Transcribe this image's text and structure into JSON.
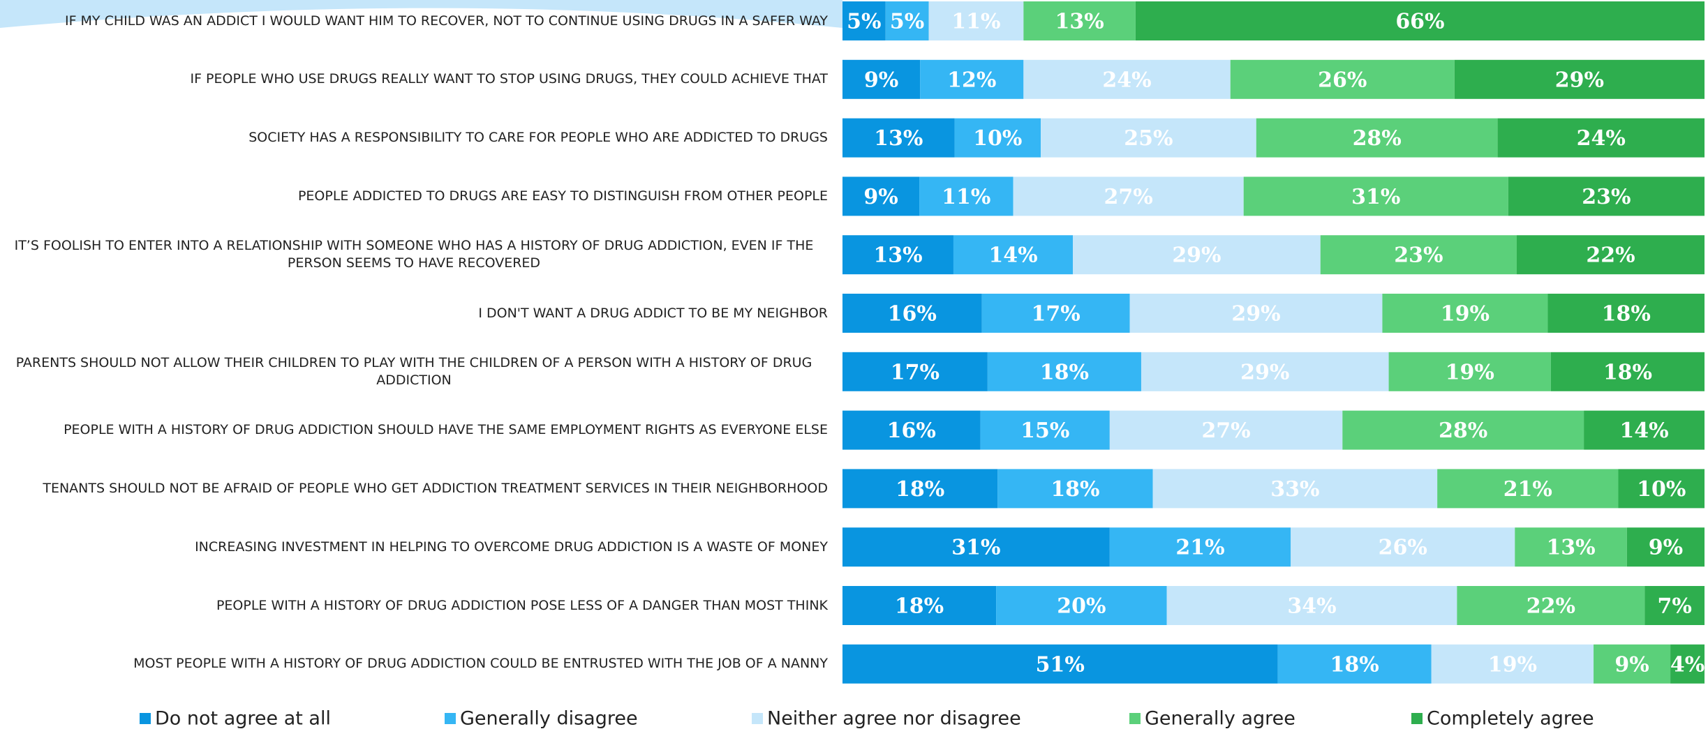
{
  "chart_data": {
    "type": "stacked-bar-horizontal",
    "categories": [
      "IF MY CHILD WAS AN ADDICT I WOULD WANT HIM TO RECOVER, NOT TO CONTINUE USING DRUGS IN A SAFER WAY",
      "IF PEOPLE WHO USE DRUGS REALLY WANT TO STOP USING DRUGS, THEY COULD ACHIEVE THAT",
      "SOCIETY HAS A RESPONSIBILITY TO CARE FOR PEOPLE WHO ARE ADDICTED TO DRUGS",
      "PEOPLE ADDICTED TO DRUGS ARE EASY TO DISTINGUISH FROM OTHER PEOPLE",
      "IT’S FOOLISH TO ENTER INTO A RELATIONSHIP WITH SOMEONE WHO HAS A HISTORY OF DRUG ADDICTION, EVEN IF THE PERSON SEEMS TO HAVE RECOVERED",
      "I DON'T WANT A DRUG ADDICT TO BE MY NEIGHBOR",
      "PARENTS SHOULD NOT ALLOW THEIR CHILDREN TO PLAY WITH THE CHILDREN OF A PERSON WITH A HISTORY OF DRUG ADDICTION",
      "PEOPLE WITH A HISTORY OF DRUG ADDICTION SHOULD HAVE THE SAME EMPLOYMENT RIGHTS AS EVERYONE ELSE",
      "TENANTS SHOULD NOT BE AFRAID OF PEOPLE WHO GET ADDICTION TREATMENT SERVICES IN THEIR NEIGHBORHOOD",
      "INCREASING INVESTMENT IN HELPING TO OVERCOME DRUG ADDICTION IS A WASTE OF MONEY",
      "PEOPLE WITH A HISTORY OF DRUG ADDICTION POSE LESS OF A DANGER THAN MOST THINK",
      "MOST PEOPLE WITH A HISTORY OF DRUG ADDICTION COULD BE ENTRUSTED WITH THE JOB OF A NANNY"
    ],
    "series": [
      {
        "name": "Do not agree at all",
        "color": "#0995e0",
        "values": [
          5,
          9,
          13,
          9,
          13,
          16,
          17,
          16,
          18,
          31,
          18,
          51
        ],
        "value_labels": [
          "5%",
          "9%",
          "13%",
          "9%",
          "13%",
          "16%",
          "17%",
          "16%",
          "18%",
          "31%",
          "18%",
          "51%"
        ]
      },
      {
        "name": "Generally disagree",
        "color": "#35b6f4",
        "values": [
          5,
          12,
          10,
          11,
          14,
          17,
          18,
          15,
          18,
          21,
          20,
          18
        ],
        "value_labels": [
          "5%",
          "12%",
          "10%",
          "11%",
          "14%",
          "17%",
          "18%",
          "15%",
          "18%",
          "21%",
          "20%",
          "18%"
        ]
      },
      {
        "name": "Neither agree nor disagree",
        "color": "#c5e6fa",
        "values": [
          11,
          24,
          25,
          27,
          29,
          29,
          29,
          27,
          33,
          26,
          34,
          19
        ],
        "value_labels": [
          "11%",
          "24%",
          "25%",
          "27%",
          "29%",
          "29%",
          "29%",
          "27%",
          "33%",
          "26%",
          "34%",
          "19%"
        ]
      },
      {
        "name": "Generally agree",
        "color": "#5bd07a",
        "values": [
          13,
          26,
          28,
          31,
          23,
          19,
          19,
          28,
          21,
          13,
          22,
          9
        ],
        "value_labels": [
          "13%",
          "26%",
          "28%",
          "31%",
          "23%",
          "19%",
          "19%",
          "28%",
          "21%",
          "13%",
          "22%",
          "9%"
        ]
      },
      {
        "name": "Completely agree",
        "color": "#2eae4e",
        "values": [
          66,
          29,
          24,
          23,
          22,
          18,
          18,
          14,
          10,
          9,
          7,
          4
        ],
        "value_labels": [
          "66%",
          "29%",
          "24%",
          "23%",
          "22%",
          "18%",
          "18%",
          "14%",
          "10%",
          "9%",
          "7%",
          "4%"
        ]
      }
    ],
    "legend": "bottom"
  }
}
